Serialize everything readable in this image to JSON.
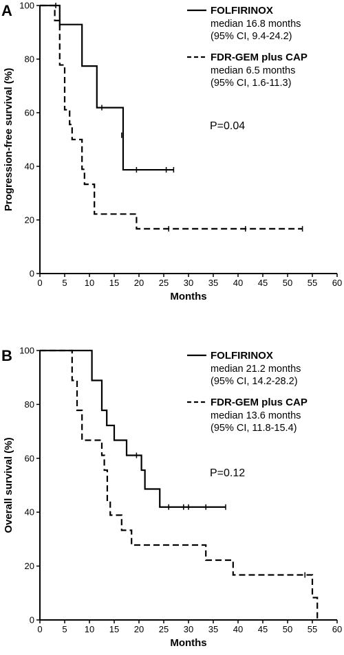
{
  "chart_data": [
    {
      "panel_label": "A",
      "type": "line",
      "xlabel": "Months",
      "ylabel": "Progression-free survival (%)",
      "xlim": [
        0,
        60
      ],
      "ylim": [
        0,
        100
      ],
      "xticks": [
        "0",
        "5",
        "10",
        "15",
        "20",
        "25",
        "30",
        "35",
        "40",
        "45",
        "50",
        "55",
        "60"
      ],
      "yticks": [
        "0",
        "20",
        "40",
        "60",
        "80",
        "100"
      ],
      "p_value": "P=0.04",
      "series": [
        {
          "name": "FOLFIRINOX",
          "line_style": "solid",
          "legend_lines": [
            "median 16.8 months",
            "(95% CI, 9.4-24.2)"
          ],
          "x": [
            0,
            3.5,
            4.0,
            7.5,
            8.5,
            11.0,
            11.5,
            16.2,
            16.8,
            27.0
          ],
          "y": [
            100,
            100,
            92.9,
            92.9,
            77.4,
            77.4,
            61.9,
            61.9,
            38.7,
            38.7
          ],
          "censored_x": [
            3.2,
            12.5,
            16.5,
            19.5,
            25.5,
            27.0
          ],
          "censored_y": [
            100,
            61.9,
            51.6,
            38.7,
            38.7,
            38.7
          ]
        },
        {
          "name": "FDR-GEM plus CAP",
          "line_style": "dashed",
          "legend_lines": [
            "median 6.5 months",
            "(95% CI, 1.6-11.3)"
          ],
          "x": [
            0,
            2.5,
            3.0,
            4.0,
            5.0,
            6.0,
            6.5,
            8.0,
            8.5,
            9.0,
            10.0,
            11.0,
            11.5,
            19.5,
            53.0
          ],
          "y": [
            100,
            100,
            94.4,
            77.8,
            61.1,
            55.6,
            50.0,
            50.0,
            38.9,
            33.3,
            33.3,
            22.2,
            22.2,
            16.7,
            16.7
          ],
          "censored_x": [
            26.0,
            41.5,
            53.0
          ],
          "censored_y": [
            16.7,
            16.7,
            16.7
          ]
        }
      ]
    },
    {
      "panel_label": "B",
      "type": "line",
      "xlabel": "Months",
      "ylabel": "Overall survival (%)",
      "xlim": [
        0,
        60
      ],
      "ylim": [
        0,
        100
      ],
      "xticks": [
        "0",
        "5",
        "10",
        "15",
        "20",
        "25",
        "30",
        "35",
        "40",
        "45",
        "50",
        "55",
        "60"
      ],
      "yticks": [
        "0",
        "20",
        "40",
        "60",
        "80",
        "100"
      ],
      "p_value": "P=0.12",
      "series": [
        {
          "name": "FOLFIRINOX",
          "line_style": "solid",
          "legend_lines": [
            "median 21.2 months",
            "(95% CI, 14.2-28.2)"
          ],
          "x": [
            0,
            10.0,
            10.5,
            12.5,
            13.5,
            15.0,
            17.5,
            20.5,
            21.2,
            22.0,
            24.2,
            37.5
          ],
          "y": [
            100,
            100,
            88.9,
            77.8,
            72.2,
            66.7,
            61.1,
            55.6,
            48.6,
            48.6,
            41.9,
            41.9
          ],
          "censored_x": [
            19.5,
            26.0,
            29.0,
            30.0,
            33.5,
            37.5
          ],
          "censored_y": [
            61.1,
            41.9,
            41.9,
            41.9,
            41.9,
            41.9
          ]
        },
        {
          "name": "FDR-GEM plus CAP",
          "line_style": "dashed",
          "legend_lines": [
            "median 13.6 months",
            "(95% CI, 11.8-15.4)"
          ],
          "x": [
            0,
            5.8,
            6.5,
            7.5,
            8.5,
            12.5,
            13.0,
            13.6,
            14.2,
            16.5,
            18.5,
            33.5,
            39.0,
            55.0,
            56.0,
            56.0
          ],
          "y": [
            100,
            100,
            88.9,
            77.8,
            66.7,
            61.1,
            55.6,
            44.4,
            38.9,
            33.3,
            27.8,
            22.2,
            16.7,
            8.3,
            8.3,
            0
          ],
          "censored_x": [
            53.5
          ],
          "censored_y": [
            16.7
          ]
        }
      ]
    }
  ]
}
